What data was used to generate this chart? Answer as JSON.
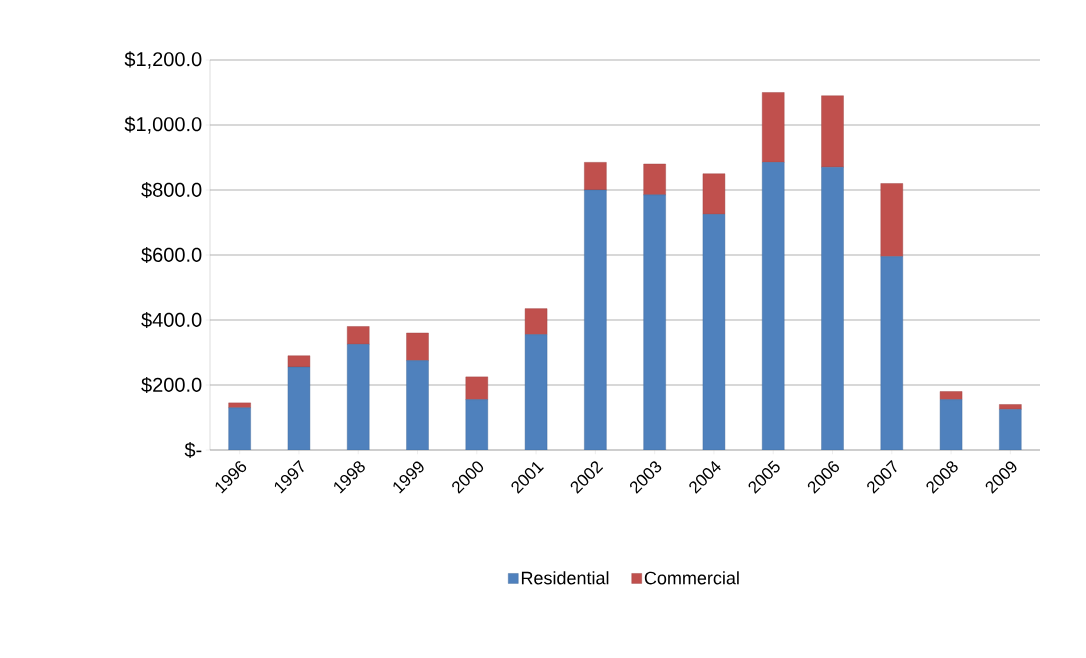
{
  "chart_data": {
    "type": "bar",
    "stacked": true,
    "categories": [
      "1996",
      "1997",
      "1998",
      "1999",
      "2000",
      "2001",
      "2002",
      "2003",
      "2004",
      "2005",
      "2006",
      "2007",
      "2008",
      "2009"
    ],
    "series": [
      {
        "name": "Residential",
        "color": "#4f81bd",
        "values": [
          130,
          255,
          325,
          275,
          155,
          355,
          800,
          785,
          725,
          885,
          870,
          595,
          155,
          125
        ]
      },
      {
        "name": "Commercial",
        "color": "#c0504d",
        "values": [
          15,
          35,
          55,
          85,
          70,
          80,
          85,
          95,
          125,
          215,
          220,
          225,
          25,
          15
        ]
      }
    ],
    "ylim": [
      0,
      1200
    ],
    "yticks": [
      {
        "value": 0,
        "label": "$-"
      },
      {
        "value": 200,
        "label": "$200.0"
      },
      {
        "value": 400,
        "label": "$400.0"
      },
      {
        "value": 600,
        "label": "$600.0"
      },
      {
        "value": 800,
        "label": "$800.0"
      },
      {
        "value": 1000,
        "label": "$1,000.0"
      },
      {
        "value": 1200,
        "label": "$1,200.0"
      }
    ],
    "grid": "y",
    "legend": "bottom"
  }
}
